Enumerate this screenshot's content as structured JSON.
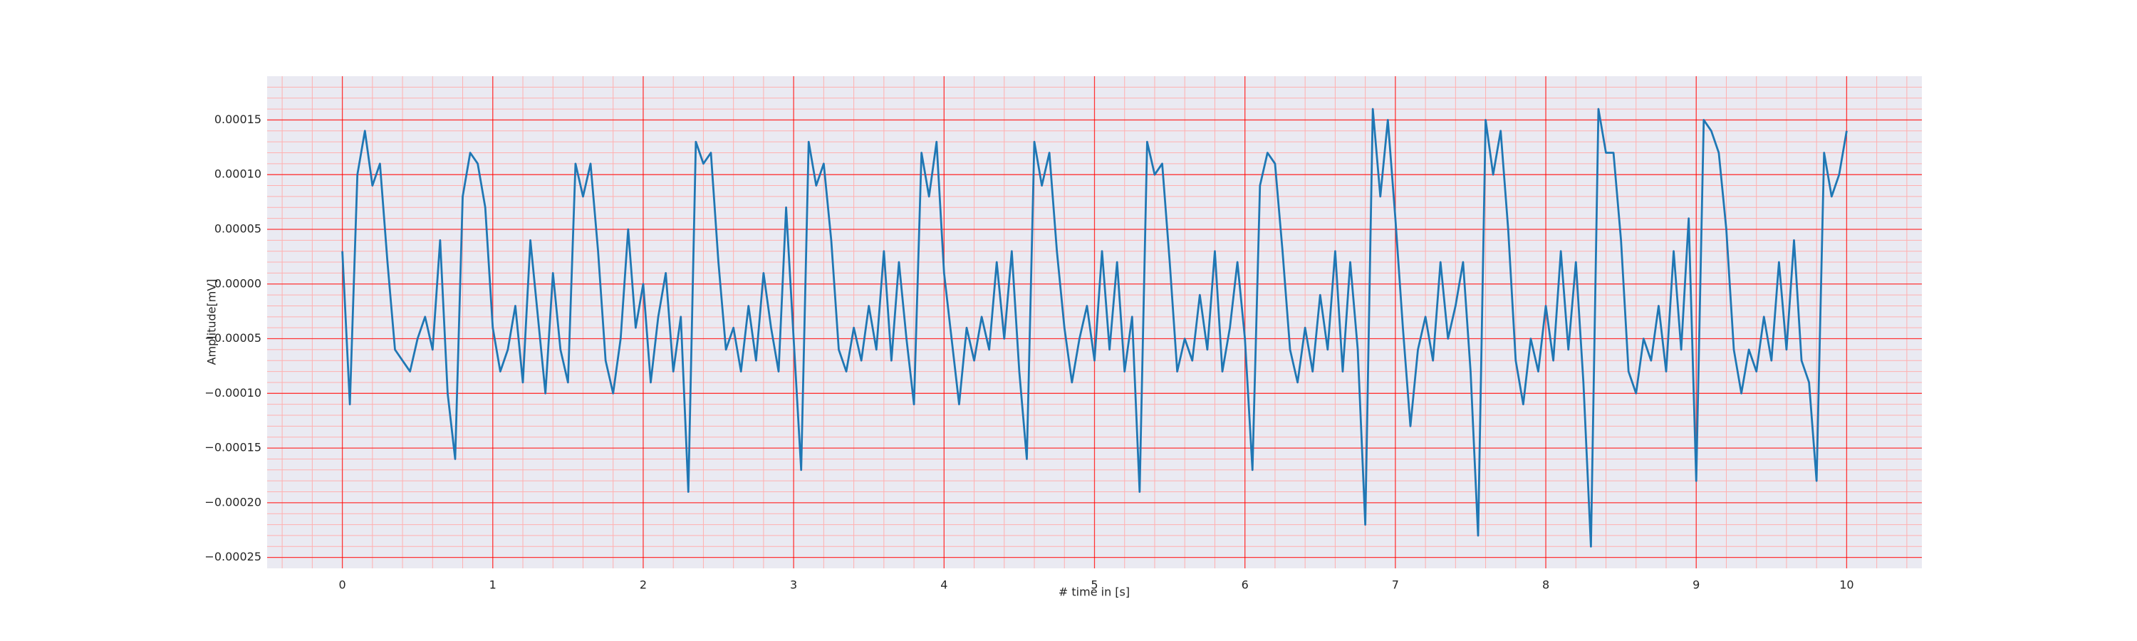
{
  "chart_data": {
    "type": "line",
    "xlabel": "# time in [s]",
    "ylabel": "Amplitude[mV]",
    "x": [
      0,
      0.05,
      0.1,
      0.15,
      0.2,
      0.25,
      0.3,
      0.35,
      0.4,
      0.45,
      0.5,
      0.55,
      0.6,
      0.65,
      0.7,
      0.75,
      0.8,
      0.85,
      0.9,
      0.95,
      1,
      1.05,
      1.1,
      1.15,
      1.2,
      1.25,
      1.3,
      1.35,
      1.4,
      1.45,
      1.5,
      1.55,
      1.6,
      1.65,
      1.7,
      1.75,
      1.8,
      1.85,
      1.9,
      1.95,
      2,
      2.05,
      2.1,
      2.15,
      2.2,
      2.25,
      2.3,
      2.35,
      2.4,
      2.45,
      2.5,
      2.55,
      2.6,
      2.65,
      2.7,
      2.75,
      2.8,
      2.85,
      2.9,
      2.95,
      3,
      3.05,
      3.1,
      3.15,
      3.2,
      3.25,
      3.3,
      3.35,
      3.4,
      3.45,
      3.5,
      3.55,
      3.6,
      3.65,
      3.7,
      3.75,
      3.8,
      3.85,
      3.9,
      3.95,
      4,
      4.05,
      4.1,
      4.15,
      4.2,
      4.25,
      4.3,
      4.35,
      4.4,
      4.45,
      4.5,
      4.55,
      4.6,
      4.65,
      4.7,
      4.75,
      4.8,
      4.85,
      4.9,
      4.95,
      5,
      5.05,
      5.1,
      5.15,
      5.2,
      5.25,
      5.3,
      5.35,
      5.4,
      5.45,
      5.5,
      5.55,
      5.6,
      5.65,
      5.7,
      5.75,
      5.8,
      5.85,
      5.9,
      5.95,
      6,
      6.05,
      6.1,
      6.15,
      6.2,
      6.25,
      6.3,
      6.35,
      6.4,
      6.45,
      6.5,
      6.55,
      6.6,
      6.65,
      6.7,
      6.75,
      6.8,
      6.85,
      6.9,
      6.95,
      7,
      7.05,
      7.1,
      7.15,
      7.2,
      7.25,
      7.3,
      7.35,
      7.4,
      7.45,
      7.5,
      7.55,
      7.6,
      7.65,
      7.7,
      7.75,
      7.8,
      7.85,
      7.9,
      7.95,
      8,
      8.05,
      8.1,
      8.15,
      8.2,
      8.25,
      8.3,
      8.35,
      8.4,
      8.45,
      8.5,
      8.55,
      8.6,
      8.65,
      8.7,
      8.75,
      8.8,
      8.85,
      8.9,
      8.95,
      9,
      9.05,
      9.1,
      9.15,
      9.2,
      9.25,
      9.3,
      9.35,
      9.4,
      9.45,
      9.5,
      9.55,
      9.6,
      9.65,
      9.7,
      9.75,
      9.8,
      9.85,
      9.9,
      9.95,
      10
    ],
    "values": [
      3e-05,
      -0.00011,
      0.0001,
      0.00014,
      9e-05,
      0.00011,
      2e-05,
      -6e-05,
      -7e-05,
      -8e-05,
      -5e-05,
      -3e-05,
      -6e-05,
      4e-05,
      -0.0001,
      -0.00016,
      8e-05,
      0.00012,
      0.00011,
      7e-05,
      -4e-05,
      -8e-05,
      -6e-05,
      -2e-05,
      -9e-05,
      4e-05,
      -3e-05,
      -0.0001,
      1e-05,
      -6e-05,
      -9e-05,
      0.00011,
      8e-05,
      0.00011,
      3e-05,
      -7e-05,
      -0.0001,
      -5e-05,
      5e-05,
      -4e-05,
      0.0,
      -9e-05,
      -3e-05,
      1e-05,
      -8e-05,
      -3e-05,
      -0.00019,
      0.00013,
      0.00011,
      0.00012,
      2e-05,
      -6e-05,
      -4e-05,
      -8e-05,
      -2e-05,
      -7e-05,
      1e-05,
      -4e-05,
      -8e-05,
      7e-05,
      -5e-05,
      -0.00017,
      0.00013,
      9e-05,
      0.00011,
      4e-05,
      -6e-05,
      -8e-05,
      -4e-05,
      -7e-05,
      -2e-05,
      -6e-05,
      3e-05,
      -7e-05,
      2e-05,
      -5e-05,
      -0.00011,
      0.00012,
      8e-05,
      0.00013,
      1e-05,
      -5e-05,
      -0.00011,
      -4e-05,
      -7e-05,
      -3e-05,
      -6e-05,
      2e-05,
      -5e-05,
      3e-05,
      -8e-05,
      -0.00016,
      0.00013,
      9e-05,
      0.00012,
      3e-05,
      -4e-05,
      -9e-05,
      -5e-05,
      -2e-05,
      -7e-05,
      3e-05,
      -6e-05,
      2e-05,
      -8e-05,
      -3e-05,
      -0.00019,
      0.00013,
      0.0001,
      0.00011,
      2e-05,
      -8e-05,
      -5e-05,
      -7e-05,
      -1e-05,
      -6e-05,
      3e-05,
      -8e-05,
      -4e-05,
      2e-05,
      -5e-05,
      -0.00017,
      9e-05,
      0.00012,
      0.00011,
      3e-05,
      -6e-05,
      -9e-05,
      -4e-05,
      -8e-05,
      -1e-05,
      -6e-05,
      3e-05,
      -8e-05,
      2e-05,
      -6e-05,
      -0.00022,
      0.00016,
      8e-05,
      0.00015,
      6e-05,
      -4e-05,
      -0.00013,
      -6e-05,
      -3e-05,
      -7e-05,
      2e-05,
      -5e-05,
      -2e-05,
      2e-05,
      -8e-05,
      -0.00023,
      0.00015,
      0.0001,
      0.00014,
      5e-05,
      -7e-05,
      -0.00011,
      -5e-05,
      -8e-05,
      -2e-05,
      -7e-05,
      3e-05,
      -6e-05,
      2e-05,
      -9e-05,
      -0.00024,
      0.00016,
      0.00012,
      0.00012,
      4e-05,
      -8e-05,
      -0.0001,
      -5e-05,
      -7e-05,
      -2e-05,
      -8e-05,
      3e-05,
      -6e-05,
      6e-05,
      -0.00018,
      0.00015,
      0.00014,
      0.00012,
      5e-05,
      -6e-05,
      -0.0001,
      -6e-05,
      -8e-05,
      -3e-05,
      -7e-05,
      2e-05,
      -6e-05,
      4e-05,
      -7e-05,
      -9e-05,
      -0.00018,
      0.00012,
      8e-05,
      0.0001,
      0.00014
    ],
    "color": "#1f77b4",
    "xlim": [
      -0.5,
      10.5
    ],
    "xticks": [
      0,
      1,
      2,
      3,
      4,
      5,
      6,
      7,
      8,
      9,
      10
    ],
    "ylim": [
      -0.00026,
      0.00019
    ],
    "yticks": [
      {
        "value": -0.00025,
        "label": "−0.00025"
      },
      {
        "value": -0.0002,
        "label": "−0.00020"
      },
      {
        "value": -0.00015,
        "label": "−0.00015"
      },
      {
        "value": -0.0001,
        "label": "−0.00010"
      },
      {
        "value": -5e-05,
        "label": "−0.00005"
      },
      {
        "value": 0,
        "label": "0.00000"
      },
      {
        "value": 5e-05,
        "label": "0.00005"
      },
      {
        "value": 0.0001,
        "label": "0.00010"
      },
      {
        "value": 0.00015,
        "label": "0.00015"
      }
    ],
    "grid": true,
    "grid_color": "#ff0000",
    "minor_grid": true,
    "minor_grid_color": "#ffb0b0",
    "minor_per_major": 5,
    "background": "#eaeaf2"
  }
}
